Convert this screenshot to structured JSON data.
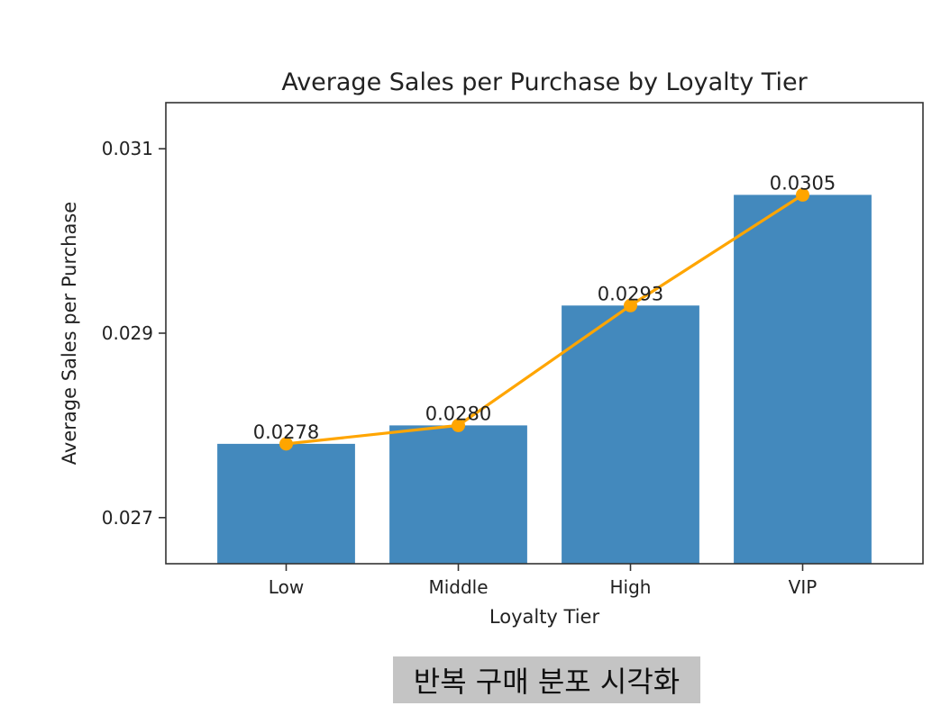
{
  "chart_data": {
    "type": "bar",
    "title": "Average Sales per Purchase by Loyalty Tier",
    "xlabel": "Loyalty Tier",
    "ylabel": "Average Sales per Purchase",
    "categories": [
      "Low",
      "Middle",
      "High",
      "VIP"
    ],
    "series": [
      {
        "type": "bar",
        "values": [
          0.0278,
          0.028,
          0.0293,
          0.0305
        ],
        "color": "#4389bd"
      },
      {
        "type": "line",
        "values": [
          0.0278,
          0.028,
          0.0293,
          0.0305
        ],
        "color": "#ffa500",
        "marker": "circle"
      }
    ],
    "data_labels": [
      "0.0278",
      "0.0280",
      "0.0293",
      "0.0305"
    ],
    "ylim": [
      0.0265,
      0.0315
    ],
    "yticks": [
      0.027,
      0.029,
      0.031
    ],
    "ytick_labels": [
      "0.027",
      "0.029",
      "0.031"
    ],
    "grid": false,
    "legend": "none"
  },
  "caption": "반복 구매 분포 시각화"
}
